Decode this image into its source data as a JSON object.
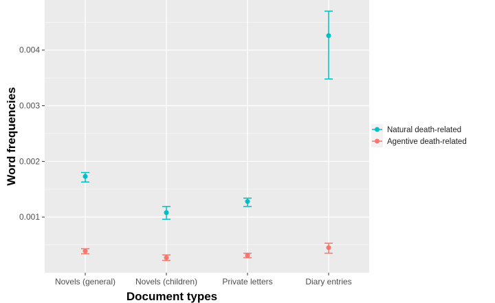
{
  "chart_data": {
    "type": "scatter",
    "title": "",
    "xlabel": "Document types",
    "ylabel": "Word frequencies",
    "categories": [
      "Novels (general)",
      "Novels (children)",
      "Private letters",
      "Diary entries"
    ],
    "ylim": [
      0,
      0.0049
    ],
    "yticks": [
      0.001,
      0.002,
      0.003,
      0.004
    ],
    "ytick_labels": [
      "0.001",
      "0.002",
      "0.003",
      "0.004"
    ],
    "grid": true,
    "legend_position": "right",
    "series": [
      {
        "name": "Natural death-related",
        "color": "#00BFC4",
        "values": [
          0.00173,
          0.00108,
          0.00128,
          0.00426
        ],
        "lower": [
          0.00163,
          0.00096,
          0.00119,
          0.00348
        ],
        "upper": [
          0.0018,
          0.00119,
          0.00134,
          0.0047
        ]
      },
      {
        "name": "Agentive death-related",
        "color": "#F8766D",
        "values": [
          0.00039,
          0.00027,
          0.00031,
          0.00045
        ],
        "lower": [
          0.00034,
          0.00022,
          0.00027,
          0.00035
        ],
        "upper": [
          0.00043,
          0.00032,
          0.00035,
          0.00053
        ]
      }
    ]
  }
}
